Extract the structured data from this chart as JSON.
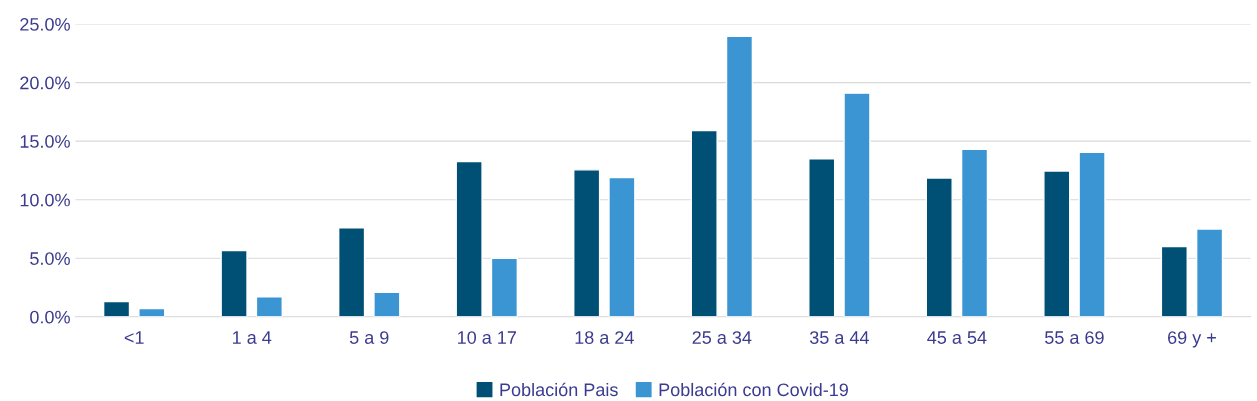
{
  "chart_data": {
    "type": "bar",
    "categories": [
      "<1",
      "1 a 4",
      "5 a 9",
      "10 a 17",
      "18 a 24",
      "25 a 34",
      "35 a 44",
      "45 a 54",
      "55 a 69",
      "69 y +"
    ],
    "series": [
      {
        "name": "Población Pais",
        "color": "#004f74",
        "values": [
          1.3,
          5.65,
          7.6,
          13.25,
          12.55,
          15.9,
          13.5,
          11.85,
          12.45,
          6.0
        ]
      },
      {
        "name": "Población con Covid-19",
        "color": "#3a95d2",
        "values": [
          0.7,
          1.7,
          2.1,
          5.0,
          11.9,
          23.95,
          19.1,
          14.3,
          14.05,
          7.5
        ]
      }
    ],
    "ylim": [
      0,
      25
    ],
    "yticks": [
      {
        "value": 0,
        "label": "0.0%"
      },
      {
        "value": 5,
        "label": "5.0%"
      },
      {
        "value": 10,
        "label": "10.0%"
      },
      {
        "value": 15,
        "label": "15.0%"
      },
      {
        "value": 20,
        "label": "20.0%"
      },
      {
        "value": 25,
        "label": "25.0%"
      }
    ],
    "grid": "y",
    "legend": "bottom"
  }
}
